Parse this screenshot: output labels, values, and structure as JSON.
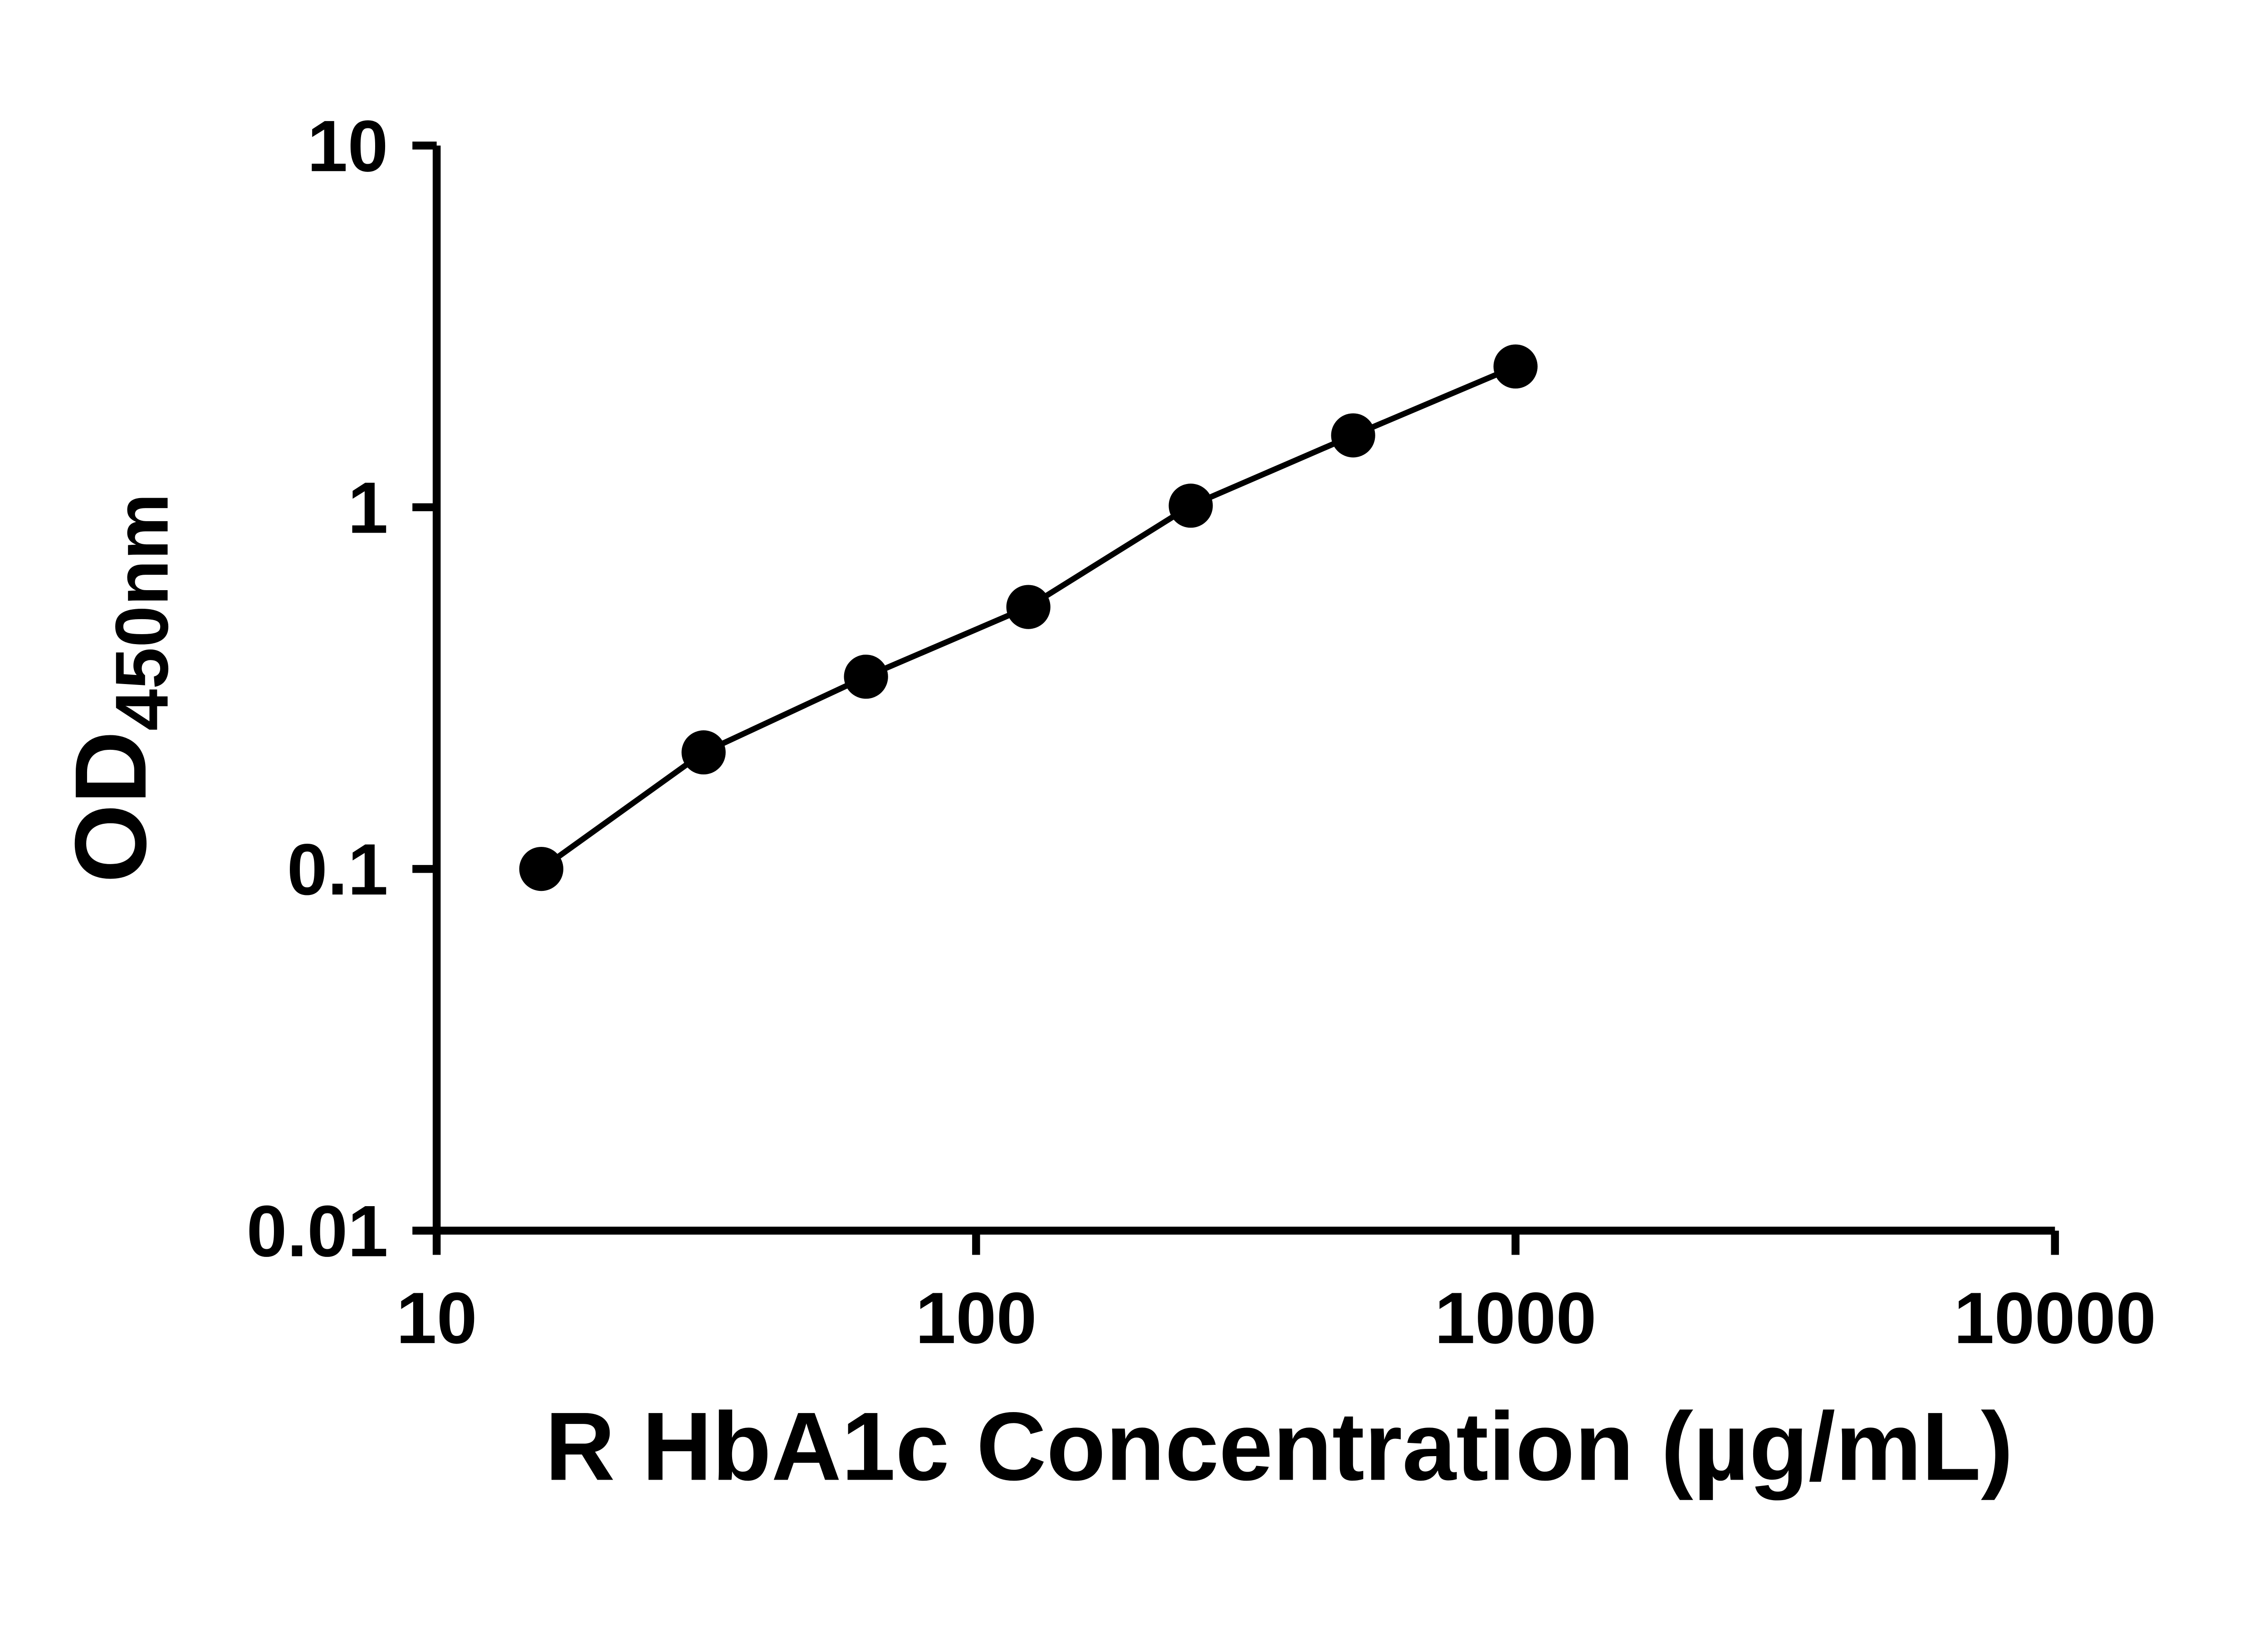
{
  "page": {
    "background": "#ffffff"
  },
  "chart_data": {
    "type": "line",
    "title": "",
    "xlabel": "R HbA1c Concentration (µg/mL)",
    "ylabel_base": "OD",
    "ylabel_subscript": "450nm",
    "x_scale": "log10",
    "y_scale": "log10",
    "xlim": [
      10,
      10000
    ],
    "ylim": [
      0.01,
      10
    ],
    "x_ticks": [
      10,
      100,
      1000,
      10000
    ],
    "x_tick_labels": [
      "10",
      "100",
      "1000",
      "10000"
    ],
    "y_ticks": [
      0.01,
      0.1,
      1,
      10
    ],
    "y_tick_labels": [
      "0.01",
      "0.1",
      "1",
      "10"
    ],
    "x": [
      15.63,
      31.25,
      62.5,
      125,
      250,
      500,
      1000
    ],
    "y": [
      0.1,
      0.21,
      0.34,
      0.53,
      1.01,
      1.58,
      2.45
    ],
    "grid": false,
    "legend": false,
    "marker": "circle",
    "marker_color": "#000000",
    "line_color": "#000000",
    "axis_color": "#000000",
    "text_color": "#000000"
  }
}
